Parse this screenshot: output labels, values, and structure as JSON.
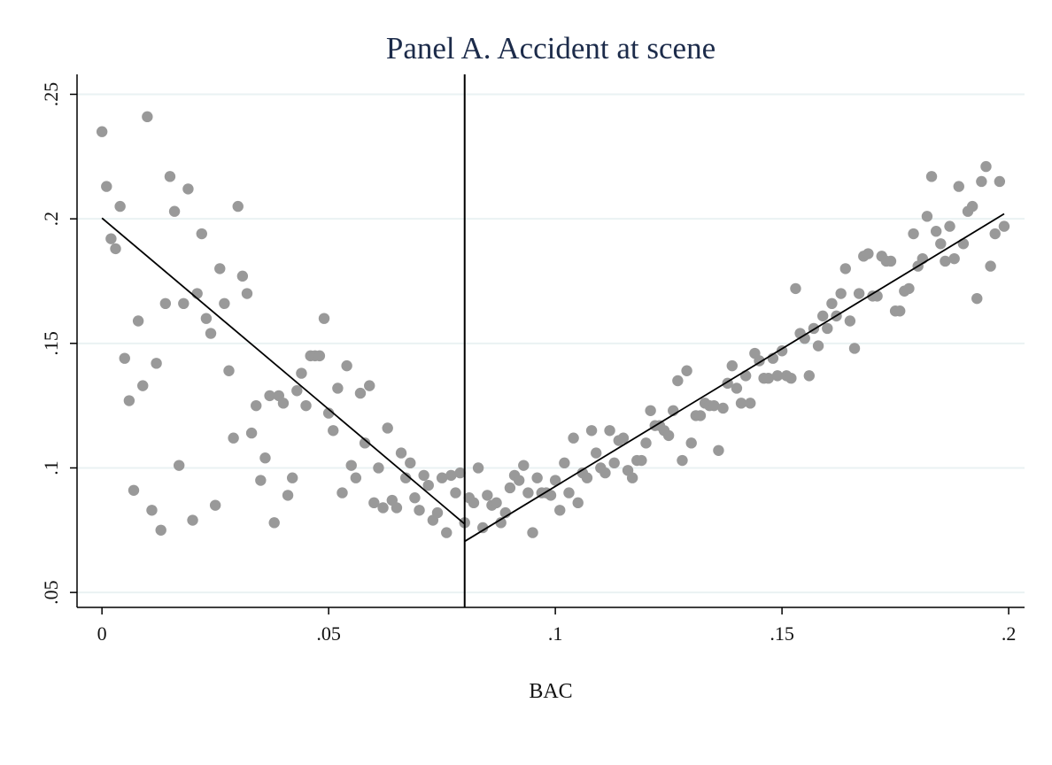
{
  "chart_data": {
    "type": "scatter",
    "title": "Panel A. Accident at scene",
    "xlabel": "BAC",
    "ylabel": "",
    "xlim": [
      -0.0055,
      0.2035
    ],
    "ylim": [
      0.044,
      0.258
    ],
    "x_ticks": [
      0,
      0.05,
      0.1,
      0.15,
      0.2
    ],
    "x_tick_labels": [
      "0",
      ".05",
      ".1",
      ".15",
      ".2"
    ],
    "y_ticks": [
      0.05,
      0.1,
      0.15,
      0.2,
      0.25
    ],
    "y_tick_labels": [
      ".05",
      ".1",
      ".15",
      ".2",
      ".25"
    ],
    "grid": "horizontal",
    "cutoff": 0.08,
    "fit_lines": [
      {
        "x": [
          0,
          0.08
        ],
        "y": [
          0.2003,
          0.0775
        ]
      },
      {
        "x": [
          0.08,
          0.199
        ],
        "y": [
          0.0705,
          0.202
        ]
      }
    ],
    "points": [
      [
        0.0,
        0.235
      ],
      [
        0.001,
        0.213
      ],
      [
        0.002,
        0.192
      ],
      [
        0.003,
        0.188
      ],
      [
        0.004,
        0.205
      ],
      [
        0.005,
        0.144
      ],
      [
        0.006,
        0.127
      ],
      [
        0.007,
        0.091
      ],
      [
        0.008,
        0.159
      ],
      [
        0.009,
        0.133
      ],
      [
        0.01,
        0.241
      ],
      [
        0.011,
        0.083
      ],
      [
        0.012,
        0.142
      ],
      [
        0.013,
        0.075
      ],
      [
        0.014,
        0.166
      ],
      [
        0.015,
        0.217
      ],
      [
        0.016,
        0.203
      ],
      [
        0.017,
        0.101
      ],
      [
        0.018,
        0.166
      ],
      [
        0.019,
        0.212
      ],
      [
        0.02,
        0.079
      ],
      [
        0.021,
        0.17
      ],
      [
        0.022,
        0.194
      ],
      [
        0.023,
        0.16
      ],
      [
        0.024,
        0.154
      ],
      [
        0.025,
        0.085
      ],
      [
        0.026,
        0.18
      ],
      [
        0.027,
        0.166
      ],
      [
        0.028,
        0.139
      ],
      [
        0.029,
        0.112
      ],
      [
        0.03,
        0.205
      ],
      [
        0.031,
        0.177
      ],
      [
        0.032,
        0.17
      ],
      [
        0.033,
        0.114
      ],
      [
        0.034,
        0.125
      ],
      [
        0.035,
        0.095
      ],
      [
        0.036,
        0.104
      ],
      [
        0.037,
        0.129
      ],
      [
        0.038,
        0.078
      ],
      [
        0.039,
        0.129
      ],
      [
        0.04,
        0.126
      ],
      [
        0.041,
        0.089
      ],
      [
        0.042,
        0.096
      ],
      [
        0.043,
        0.131
      ],
      [
        0.044,
        0.138
      ],
      [
        0.045,
        0.125
      ],
      [
        0.046,
        0.145
      ],
      [
        0.047,
        0.145
      ],
      [
        0.048,
        0.145
      ],
      [
        0.049,
        0.16
      ],
      [
        0.05,
        0.122
      ],
      [
        0.051,
        0.115
      ],
      [
        0.052,
        0.132
      ],
      [
        0.053,
        0.09
      ],
      [
        0.054,
        0.141
      ],
      [
        0.055,
        0.101
      ],
      [
        0.056,
        0.096
      ],
      [
        0.057,
        0.13
      ],
      [
        0.058,
        0.11
      ],
      [
        0.059,
        0.133
      ],
      [
        0.06,
        0.086
      ],
      [
        0.061,
        0.1
      ],
      [
        0.062,
        0.084
      ],
      [
        0.063,
        0.116
      ],
      [
        0.064,
        0.087
      ],
      [
        0.065,
        0.084
      ],
      [
        0.066,
        0.106
      ],
      [
        0.067,
        0.096
      ],
      [
        0.068,
        0.102
      ],
      [
        0.069,
        0.088
      ],
      [
        0.07,
        0.083
      ],
      [
        0.071,
        0.097
      ],
      [
        0.072,
        0.093
      ],
      [
        0.073,
        0.079
      ],
      [
        0.074,
        0.082
      ],
      [
        0.075,
        0.096
      ],
      [
        0.076,
        0.074
      ],
      [
        0.077,
        0.097
      ],
      [
        0.078,
        0.09
      ],
      [
        0.079,
        0.098
      ],
      [
        0.08,
        0.078
      ],
      [
        0.081,
        0.088
      ],
      [
        0.082,
        0.086
      ],
      [
        0.083,
        0.1
      ],
      [
        0.084,
        0.076
      ],
      [
        0.085,
        0.089
      ],
      [
        0.086,
        0.085
      ],
      [
        0.087,
        0.086
      ],
      [
        0.088,
        0.078
      ],
      [
        0.089,
        0.082
      ],
      [
        0.09,
        0.092
      ],
      [
        0.091,
        0.097
      ],
      [
        0.092,
        0.095
      ],
      [
        0.093,
        0.101
      ],
      [
        0.094,
        0.09
      ],
      [
        0.095,
        0.074
      ],
      [
        0.096,
        0.096
      ],
      [
        0.097,
        0.09
      ],
      [
        0.098,
        0.09
      ],
      [
        0.099,
        0.089
      ],
      [
        0.1,
        0.095
      ],
      [
        0.101,
        0.083
      ],
      [
        0.102,
        0.102
      ],
      [
        0.103,
        0.09
      ],
      [
        0.104,
        0.112
      ],
      [
        0.105,
        0.086
      ],
      [
        0.106,
        0.098
      ],
      [
        0.107,
        0.096
      ],
      [
        0.108,
        0.115
      ],
      [
        0.109,
        0.106
      ],
      [
        0.11,
        0.1
      ],
      [
        0.111,
        0.098
      ],
      [
        0.112,
        0.115
      ],
      [
        0.113,
        0.102
      ],
      [
        0.114,
        0.111
      ],
      [
        0.115,
        0.112
      ],
      [
        0.116,
        0.099
      ],
      [
        0.117,
        0.096
      ],
      [
        0.118,
        0.103
      ],
      [
        0.119,
        0.103
      ],
      [
        0.12,
        0.11
      ],
      [
        0.121,
        0.123
      ],
      [
        0.122,
        0.117
      ],
      [
        0.123,
        0.117
      ],
      [
        0.124,
        0.115
      ],
      [
        0.125,
        0.113
      ],
      [
        0.126,
        0.123
      ],
      [
        0.127,
        0.135
      ],
      [
        0.128,
        0.103
      ],
      [
        0.129,
        0.139
      ],
      [
        0.13,
        0.11
      ],
      [
        0.131,
        0.121
      ],
      [
        0.132,
        0.121
      ],
      [
        0.133,
        0.126
      ],
      [
        0.134,
        0.125
      ],
      [
        0.135,
        0.125
      ],
      [
        0.136,
        0.107
      ],
      [
        0.137,
        0.124
      ],
      [
        0.138,
        0.134
      ],
      [
        0.139,
        0.141
      ],
      [
        0.14,
        0.132
      ],
      [
        0.141,
        0.126
      ],
      [
        0.142,
        0.137
      ],
      [
        0.143,
        0.126
      ],
      [
        0.144,
        0.146
      ],
      [
        0.145,
        0.143
      ],
      [
        0.146,
        0.136
      ],
      [
        0.147,
        0.136
      ],
      [
        0.148,
        0.144
      ],
      [
        0.149,
        0.137
      ],
      [
        0.15,
        0.147
      ],
      [
        0.151,
        0.137
      ],
      [
        0.152,
        0.136
      ],
      [
        0.153,
        0.172
      ],
      [
        0.154,
        0.154
      ],
      [
        0.155,
        0.152
      ],
      [
        0.156,
        0.137
      ],
      [
        0.157,
        0.156
      ],
      [
        0.158,
        0.149
      ],
      [
        0.159,
        0.161
      ],
      [
        0.16,
        0.156
      ],
      [
        0.161,
        0.166
      ],
      [
        0.162,
        0.161
      ],
      [
        0.163,
        0.17
      ],
      [
        0.164,
        0.18
      ],
      [
        0.165,
        0.159
      ],
      [
        0.166,
        0.148
      ],
      [
        0.167,
        0.17
      ],
      [
        0.168,
        0.185
      ],
      [
        0.169,
        0.186
      ],
      [
        0.17,
        0.169
      ],
      [
        0.171,
        0.169
      ],
      [
        0.172,
        0.185
      ],
      [
        0.173,
        0.183
      ],
      [
        0.174,
        0.183
      ],
      [
        0.175,
        0.163
      ],
      [
        0.176,
        0.163
      ],
      [
        0.177,
        0.171
      ],
      [
        0.178,
        0.172
      ],
      [
        0.179,
        0.194
      ],
      [
        0.18,
        0.181
      ],
      [
        0.181,
        0.184
      ],
      [
        0.182,
        0.201
      ],
      [
        0.183,
        0.217
      ],
      [
        0.184,
        0.195
      ],
      [
        0.185,
        0.19
      ],
      [
        0.186,
        0.183
      ],
      [
        0.187,
        0.197
      ],
      [
        0.188,
        0.184
      ],
      [
        0.189,
        0.213
      ],
      [
        0.19,
        0.19
      ],
      [
        0.191,
        0.203
      ],
      [
        0.192,
        0.205
      ],
      [
        0.193,
        0.168
      ],
      [
        0.194,
        0.215
      ],
      [
        0.195,
        0.221
      ],
      [
        0.196,
        0.181
      ],
      [
        0.197,
        0.194
      ],
      [
        0.198,
        0.215
      ],
      [
        0.199,
        0.197
      ]
    ],
    "colors": {
      "points": "#999999",
      "lines": "#000000",
      "grid": "#eaf2f3",
      "title": "#1c2b4a"
    }
  }
}
